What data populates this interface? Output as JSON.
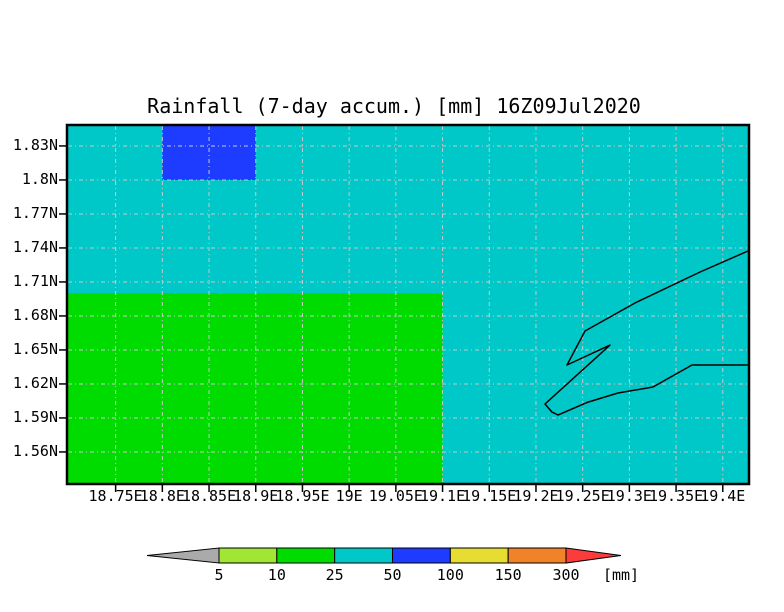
{
  "title": "Rainfall (7-day accum.) [mm] 16Z09Jul2020",
  "chart_data": {
    "type": "heatmap",
    "title": "Rainfall (7-day accum.) [mm] 16Z09Jul2020",
    "variable": "Rainfall (7-day accum.)",
    "unit": "mm",
    "valid_time": "16Z09Jul2020",
    "grid": true,
    "x_axis": {
      "range": [
        18.699,
        19.427
      ],
      "tick_values": [
        18.75,
        18.8,
        18.85,
        18.9,
        18.95,
        19.0,
        19.05,
        19.1,
        19.15,
        19.2,
        19.25,
        19.3,
        19.35,
        19.4
      ],
      "tick_labels": [
        "18.75E",
        "18.8E",
        "18.85E",
        "18.9E",
        "18.95E",
        "19E",
        "19.05E",
        "19.1E",
        "19.15E",
        "19.2E",
        "19.25E",
        "19.3E",
        "19.35E",
        "19.4E"
      ]
    },
    "y_axis": {
      "range": [
        1.5326,
        1.8476
      ],
      "tick_values": [
        1.83,
        1.8,
        1.77,
        1.74,
        1.71,
        1.68,
        1.65,
        1.62,
        1.59,
        1.56
      ],
      "tick_labels": [
        "1.83N",
        "1.8N",
        "1.77N",
        "1.74N",
        "1.71N",
        "1.68N",
        "1.65N",
        "1.62N",
        "1.59N",
        "1.56N"
      ]
    },
    "background_field": {
      "bin": "25-50",
      "color": "#00c8c8"
    },
    "cells": [
      {
        "lon_min": 18.699,
        "lon_max": 19.1,
        "lat_min": 1.5326,
        "lat_max": 1.7,
        "bin": "10-25",
        "color": "#00dc00"
      },
      {
        "lon_min": 18.8,
        "lon_max": 18.9,
        "lat_min": 1.8,
        "lat_max": 1.8476,
        "bin": "50-100",
        "color": "#1e3cff"
      }
    ],
    "coastline": [
      [
        19.427,
        1.7373
      ],
      [
        19.3757,
        1.7188
      ],
      [
        19.306,
        1.6914
      ],
      [
        19.2525,
        1.6667
      ],
      [
        19.2332,
        1.6367
      ],
      [
        19.2793,
        1.6543
      ],
      [
        19.2097,
        1.6023
      ],
      [
        19.2172,
        1.5952
      ],
      [
        19.2236,
        1.5926
      ],
      [
        19.2557,
        1.604
      ],
      [
        19.2878,
        1.612
      ],
      [
        19.3253,
        1.6173
      ],
      [
        19.367,
        1.6367
      ],
      [
        19.427,
        1.6367
      ]
    ],
    "colorbar": {
      "tick_labels": [
        "5",
        "10",
        "25",
        "50",
        "100",
        "150",
        "300"
      ],
      "unit_label": "[mm]",
      "segment_colors": [
        "#a0e632",
        "#00dc00",
        "#00c8c8",
        "#1e3cff",
        "#e6dc32",
        "#f08228"
      ],
      "below_color": "#aaaaaa",
      "above_color": "#fa3c3c"
    }
  },
  "colors": {
    "background": "#ffffff",
    "grid_line": "#c8c8c8",
    "border": "#000000",
    "text": "#000000"
  }
}
